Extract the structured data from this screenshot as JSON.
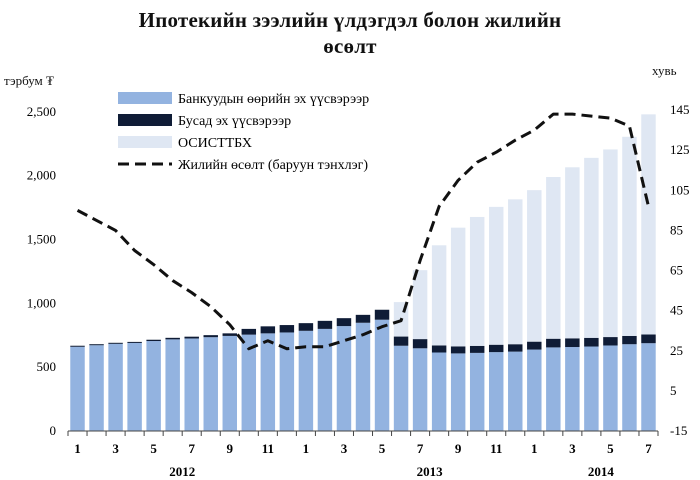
{
  "chart_data": {
    "type": "bar",
    "title_line1": "Ипотекийн зээлийн үлдэгдэл болон жилийн",
    "title_line2": "өсөлт",
    "y_left_label": "тэрбум ₮",
    "y_right_label": "хувь",
    "y_left_range": [
      0,
      2750
    ],
    "y_left_ticks": [
      "0",
      "500",
      "1,000",
      "1,500",
      "2,000",
      "2,500"
    ],
    "y_left_tick_values": [
      0,
      500,
      1000,
      1500,
      2000,
      2500
    ],
    "y_right_range": [
      -15,
      160
    ],
    "y_right_ticks": [
      "-15",
      "5",
      "25",
      "45",
      "65",
      "85",
      "105",
      "125",
      "145"
    ],
    "y_right_tick_values": [
      -15,
      5,
      25,
      45,
      65,
      85,
      105,
      125,
      145
    ],
    "categories": [
      "1",
      "2",
      "3",
      "4",
      "5",
      "6",
      "7",
      "8",
      "9",
      "10",
      "11",
      "12",
      "1",
      "2",
      "3",
      "4",
      "5",
      "6",
      "7",
      "8",
      "9",
      "10",
      "11",
      "12",
      "1",
      "2",
      "3",
      "4",
      "5",
      "6",
      "7"
    ],
    "x_tick_labels": [
      {
        "index": 0,
        "label": "1"
      },
      {
        "index": 2,
        "label": "3"
      },
      {
        "index": 4,
        "label": "5"
      },
      {
        "index": 6,
        "label": "7"
      },
      {
        "index": 8,
        "label": "9"
      },
      {
        "index": 10,
        "label": "11"
      },
      {
        "index": 12,
        "label": "1"
      },
      {
        "index": 14,
        "label": "3"
      },
      {
        "index": 16,
        "label": "5"
      },
      {
        "index": 18,
        "label": "7"
      },
      {
        "index": 20,
        "label": "9"
      },
      {
        "index": 22,
        "label": "11"
      },
      {
        "index": 24,
        "label": "1"
      },
      {
        "index": 26,
        "label": "3"
      },
      {
        "index": 28,
        "label": "5"
      },
      {
        "index": 30,
        "label": "7"
      }
    ],
    "year_labels": [
      {
        "year": "2012",
        "center_index": 5.5
      },
      {
        "year": "2013",
        "center_index": 18.5
      },
      {
        "year": "2014",
        "center_index": 27.5
      }
    ],
    "series": [
      {
        "name": "Банкуудын өөрийн эх үүсвэрээр",
        "kind": "stacked-bar",
        "color": "#93b3e0",
        "values": [
          660,
          672,
          683,
          690,
          705,
          718,
          725,
          735,
          745,
          755,
          765,
          772,
          785,
          800,
          822,
          848,
          872,
          668,
          648,
          615,
          608,
          612,
          618,
          622,
          638,
          655,
          658,
          662,
          670,
          680,
          688
        ]
      },
      {
        "name": "Бусад эх үүсвэрээр",
        "kind": "stacked-bar",
        "color": "#0f1c36",
        "values": [
          8,
          8,
          8,
          8,
          10,
          12,
          14,
          16,
          20,
          45,
          55,
          58,
          60,
          63,
          62,
          62,
          78,
          72,
          72,
          55,
          55,
          55,
          58,
          58,
          62,
          68,
          68,
          68,
          66,
          65,
          68
        ]
      },
      {
        "name": "ОСИСТТБХ",
        "kind": "stacked-bar",
        "color": "#dfe7f3",
        "values": [
          0,
          0,
          0,
          0,
          0,
          0,
          0,
          0,
          0,
          0,
          0,
          0,
          0,
          0,
          0,
          0,
          0,
          270,
          540,
          785,
          930,
          1010,
          1080,
          1135,
          1187,
          1267,
          1340,
          1410,
          1470,
          1560,
          1725
        ]
      },
      {
        "name": "Жилийн өсөлт (баруун тэнхлэг)",
        "kind": "line-right-axis",
        "color": "#111111",
        "values": [
          95,
          90,
          85,
          75,
          68,
          60,
          54,
          47,
          38,
          26,
          30,
          26,
          27,
          27,
          30,
          33,
          37,
          40,
          70,
          97,
          110,
          119,
          124,
          130,
          135,
          143,
          143,
          142,
          141,
          137,
          97
        ]
      }
    ],
    "legend_position": "top-left",
    "grid": false
  }
}
